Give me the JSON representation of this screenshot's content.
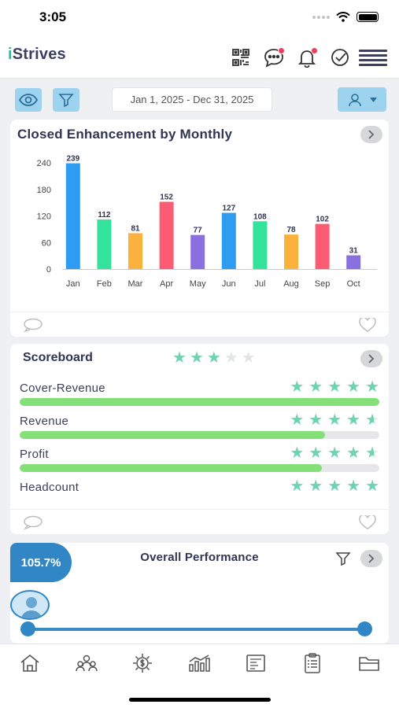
{
  "status": {
    "time": "3:05"
  },
  "app": {
    "logo_text": "Strives",
    "logo_prefix": "i"
  },
  "header_icons": [
    "qr-code-icon",
    "chat-icon",
    "bell-icon",
    "check-circle-icon",
    "menu-icon"
  ],
  "filters": {
    "date_range": "Jan 1, 2025 -  Dec 31, 2025"
  },
  "closed_card": {
    "title": "Closed Enhancement by Monthly"
  },
  "chart_data": {
    "type": "bar",
    "title": "Closed Enhancement by Monthly",
    "xlabel": "",
    "ylabel": "",
    "categories": [
      "Jan",
      "Feb",
      "Mar",
      "Apr",
      "May",
      "Jun",
      "Jul",
      "Aug",
      "Sep",
      "Oct"
    ],
    "values": [
      239,
      112,
      81,
      152,
      77,
      127,
      108,
      78,
      102,
      31
    ],
    "colors": [
      "#2e9cf0",
      "#33e39b",
      "#fbb23c",
      "#fb5b73",
      "#8a6fe0",
      "#2e9cf0",
      "#33e39b",
      "#fbb23c",
      "#fb5b73",
      "#8a6fe0"
    ],
    "ylim": [
      0,
      240
    ],
    "yticks": [
      0,
      60,
      120,
      180,
      240
    ],
    "grid": false,
    "legend": "none"
  },
  "scoreboard": {
    "title": "Scoreboard",
    "rating": 3,
    "rating_max": 5,
    "metrics": [
      {
        "label": "Cover-Revenue",
        "stars": 5,
        "progress": 1.0
      },
      {
        "label": "Revenue",
        "stars": 4.6,
        "progress": 0.85
      },
      {
        "label": "Profit",
        "stars": 4.6,
        "progress": 0.84
      },
      {
        "label": "Headcount",
        "stars": 5,
        "progress": null
      }
    ]
  },
  "performance": {
    "title": "Overall Performance",
    "badge": "105.7%",
    "slider_min_fraction": 0.0,
    "slider_max_fraction": 1.0
  },
  "bottom_nav": [
    "home-icon",
    "team-icon",
    "money-gear-icon",
    "bar-chart-icon",
    "report-icon",
    "clipboard-list-icon",
    "folder-icon"
  ],
  "colors": {
    "accent": "#3187c5",
    "light_accent": "#9ed3f0",
    "star": "#6fd3b0",
    "progress": "#86e07a"
  }
}
